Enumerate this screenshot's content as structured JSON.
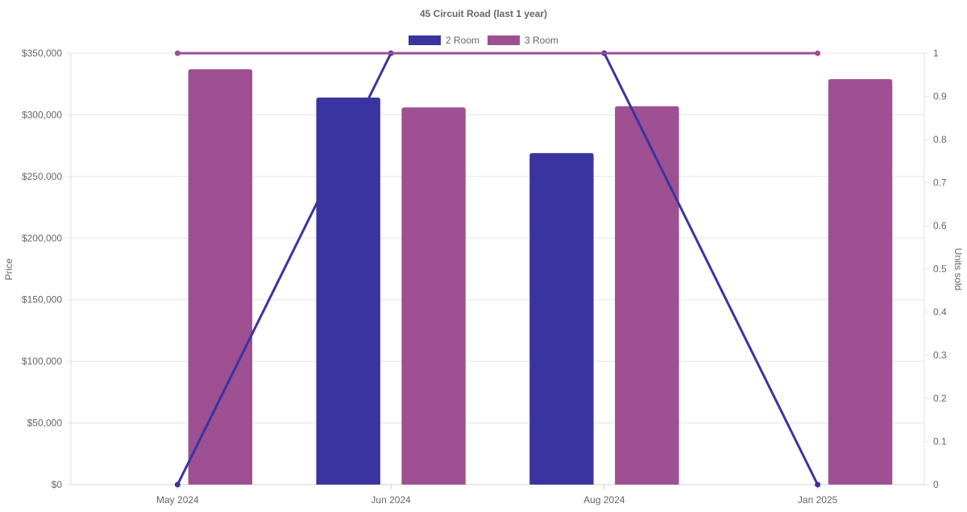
{
  "chart_data": {
    "type": "bar",
    "title": "45 Circuit Road (last 1 year)",
    "categories": [
      "May 2024",
      "Jun 2024",
      "Aug 2024",
      "Jan 2025"
    ],
    "series": [
      {
        "name": "2 Room",
        "type": "bar",
        "axis": "left",
        "color": "#3a34a0",
        "values": [
          null,
          314000,
          269000,
          null
        ]
      },
      {
        "name": "3 Room",
        "type": "bar",
        "axis": "left",
        "color": "#9e5093",
        "values": [
          337000,
          306000,
          307000,
          329000
        ]
      },
      {
        "type": "line",
        "axis": "right",
        "color": "#3a34a0",
        "values": [
          0,
          1,
          1,
          0
        ]
      },
      {
        "type": "line",
        "axis": "right",
        "color": "#9e5093",
        "values": [
          1,
          null,
          null,
          1
        ]
      }
    ],
    "ylabel": "Price",
    "y2label": "Units sold",
    "ylim": [
      0,
      350000
    ],
    "y2lim": [
      0,
      1
    ],
    "yticks": [
      "$0",
      "$50,000",
      "$100,000",
      "$150,000",
      "$200,000",
      "$250,000",
      "$300,000",
      "$350,000"
    ],
    "y2ticks": [
      "0",
      "0.1",
      "0.2",
      "0.3",
      "0.4",
      "0.5",
      "0.6",
      "0.7",
      "0.8",
      "0.9",
      "1"
    ],
    "grid": true,
    "legend_position": "top"
  }
}
